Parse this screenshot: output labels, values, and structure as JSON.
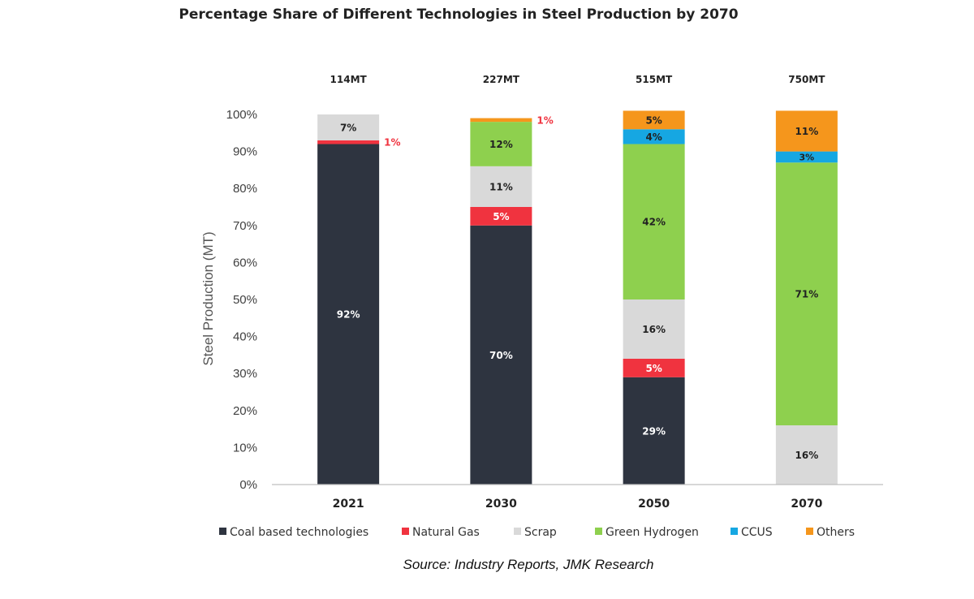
{
  "chart_data": {
    "type": "bar",
    "stacked": true,
    "title": "Percentage Share of Different Technologies in Steel Production by 2070",
    "ylabel": "Steel Production (MT)",
    "xlabel": "",
    "ylim": [
      0,
      100
    ],
    "yticks": [
      "0%",
      "10%",
      "20%",
      "30%",
      "40%",
      "50%",
      "60%",
      "70%",
      "80%",
      "90%",
      "100%"
    ],
    "categories": [
      "2021",
      "2030",
      "2050",
      "2070"
    ],
    "totals": [
      "114MT",
      "227MT",
      "515MT",
      "750MT"
    ],
    "series": [
      {
        "name": "Coal based technologies",
        "color": "#2e3440",
        "values": [
          92,
          70,
          29,
          0
        ],
        "labels": [
          "92%",
          "70%",
          "29%",
          ""
        ]
      },
      {
        "name": "Natural Gas",
        "color": "#f0333f",
        "values": [
          1,
          5,
          5,
          0
        ],
        "labels": [
          "1%",
          "5%",
          "5%",
          ""
        ]
      },
      {
        "name": "Scrap",
        "color": "#d9d9d9",
        "values": [
          7,
          11,
          16,
          16
        ],
        "labels": [
          "7%",
          "11%",
          "16%",
          "16%"
        ]
      },
      {
        "name": "Green Hydrogen",
        "color": "#8ed04e",
        "values": [
          0,
          12,
          42,
          71
        ],
        "labels": [
          "",
          "12%",
          "42%",
          "71%"
        ]
      },
      {
        "name": "CCUS",
        "color": "#16a7e2",
        "values": [
          0,
          0,
          4,
          3
        ],
        "labels": [
          "",
          "",
          "4%",
          "3%"
        ]
      },
      {
        "name": "Others",
        "color": "#f5961c",
        "values": [
          0,
          1,
          5,
          11
        ],
        "labels": [
          "",
          "1%",
          "5%",
          "11%"
        ]
      }
    ],
    "legend_position": "bottom",
    "grid": false
  },
  "source": "Source: Industry Reports, JMK Research",
  "colors": {
    "axis": "#bfbfbf",
    "text": "#404040",
    "label_dark": "#222222",
    "label_light": "#ffffff",
    "label_outside": "#f0333f"
  }
}
